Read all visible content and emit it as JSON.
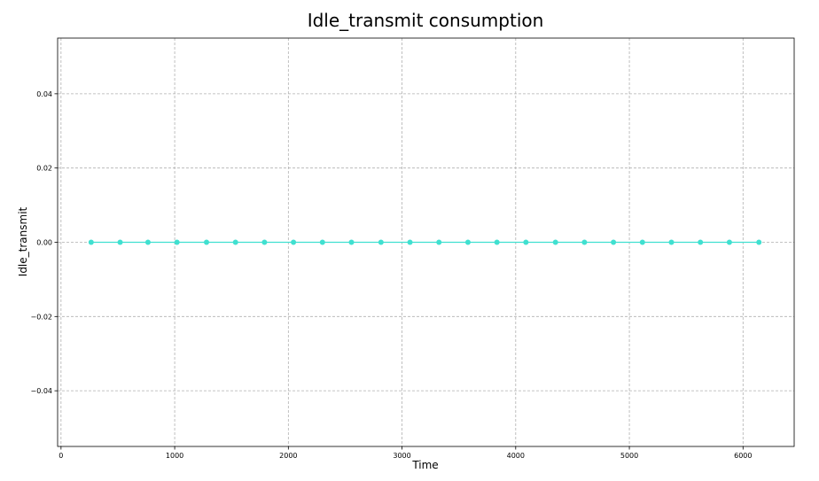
{
  "chart_data": {
    "type": "line",
    "title": "Idle_transmit consumption",
    "xlabel": "Time",
    "ylabel": "Idle_transmit",
    "xlim": [
      -30,
      6450
    ],
    "ylim": [
      -0.055,
      0.055
    ],
    "x_ticks": [
      0,
      1000,
      2000,
      3000,
      4000,
      5000,
      6000
    ],
    "y_ticks": [
      -0.04,
      -0.02,
      0.0,
      0.02,
      0.04
    ],
    "x_tick_labels": [
      "0",
      "1000",
      "2000",
      "3000",
      "4000",
      "5000",
      "6000"
    ],
    "y_tick_labels": [
      "−0.04",
      "−0.02",
      "0.00",
      "0.02",
      "0.04"
    ],
    "grid": true,
    "series": [
      {
        "color": "#40e0d0",
        "marker": "circle",
        "x": [
          265,
          520,
          765,
          1020,
          1280,
          1535,
          1790,
          2045,
          2300,
          2555,
          2815,
          3070,
          3325,
          3580,
          3835,
          4090,
          4350,
          4605,
          4860,
          5115,
          5370,
          5625,
          5880,
          6140
        ],
        "y": [
          0,
          0,
          0,
          0,
          0,
          0,
          0,
          0,
          0,
          0,
          0,
          0,
          0,
          0,
          0,
          0,
          0,
          0,
          0,
          0,
          0,
          0,
          0,
          0
        ]
      }
    ]
  }
}
